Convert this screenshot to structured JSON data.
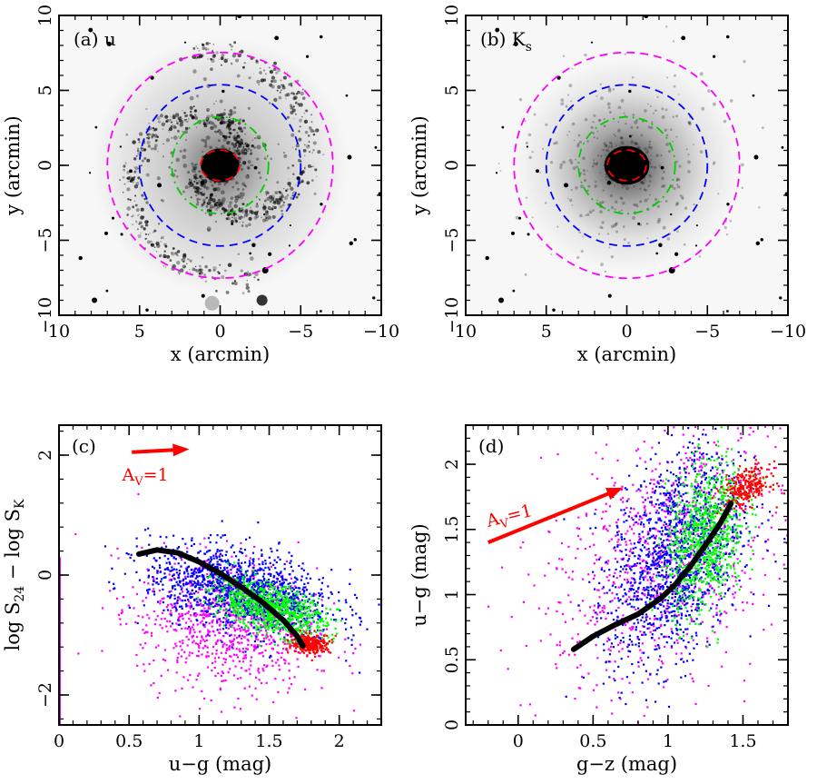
{
  "chart_data": [
    {
      "id": "a",
      "type": "image",
      "panel_label": "(a) u",
      "band": "u",
      "xlabel": "x (arcmin)",
      "ylabel": "y (arcmin)",
      "xlim": [
        10,
        -10
      ],
      "ylim": [
        -10,
        10
      ],
      "xticks": [
        10,
        5,
        0,
        -5,
        -10
      ],
      "yticks": [
        -10,
        -5,
        0,
        5,
        10
      ],
      "xtick_labels": [
        "10",
        "5",
        "0",
        "−5",
        "−10"
      ],
      "ytick_labels": [
        "−10",
        "−5",
        "0",
        "5",
        "10"
      ],
      "apertures": [
        {
          "name": "red",
          "color": "#ff0000",
          "a": 1.2,
          "b": 1.0
        },
        {
          "name": "green",
          "color": "#00cc00",
          "a": 3.0,
          "b": 3.0
        },
        {
          "name": "blue",
          "color": "#0000ff",
          "a": 5.0,
          "b": 5.0
        },
        {
          "name": "magenta",
          "color": "#ff00ff",
          "a": 7.0,
          "b": 7.0
        }
      ]
    },
    {
      "id": "b",
      "type": "image",
      "panel_label": "(b) K",
      "panel_label_sub": "s",
      "band": "Ks",
      "xlabel": "x (arcmin)",
      "ylabel": "y (arcmin)",
      "xlim": [
        10,
        -10
      ],
      "ylim": [
        -10,
        10
      ],
      "xticks": [
        10,
        5,
        0,
        -5,
        -10
      ],
      "yticks": [
        -10,
        -5,
        0,
        5,
        10
      ],
      "xtick_labels": [
        "10",
        "5",
        "0",
        "−5",
        "−10"
      ],
      "ytick_labels": [
        "−10",
        "−5",
        "0",
        "5",
        "10"
      ],
      "apertures": [
        {
          "name": "red",
          "color": "#ff0000",
          "a": 1.2,
          "b": 1.0
        },
        {
          "name": "green",
          "color": "#00cc00",
          "a": 3.0,
          "b": 3.0
        },
        {
          "name": "blue",
          "color": "#0000ff",
          "a": 5.0,
          "b": 5.0
        },
        {
          "name": "magenta",
          "color": "#ff00ff",
          "a": 7.0,
          "b": 7.0
        }
      ]
    },
    {
      "id": "c",
      "type": "scatter",
      "panel_label": "(c)",
      "xlabel": "u−g (mag)",
      "ylabel_parts": [
        "log S",
        "24",
        " − log S",
        "K"
      ],
      "xlim": [
        0,
        2.3
      ],
      "ylim": [
        -2.5,
        2.5
      ],
      "xticks": [
        0,
        0.5,
        1,
        1.5,
        2
      ],
      "yticks": [
        -2,
        0,
        2
      ],
      "xtick_labels": [
        "0",
        "0.5",
        "1",
        "1.5",
        "2"
      ],
      "ytick_labels": [
        "−2",
        "0",
        "2"
      ],
      "arrow": {
        "label": "A",
        "label_sub": "V",
        "label_tail": "=1",
        "from": [
          0.52,
          2.05
        ],
        "to": [
          0.93,
          2.1
        ]
      },
      "series": [
        {
          "name": "magenta",
          "color": "#ff00ff",
          "center": [
            1.2,
            -0.8
          ],
          "spread": [
            0.32,
            0.55
          ],
          "tilt": -0.3,
          "n": 900
        },
        {
          "name": "blue",
          "color": "#0000ff",
          "center": [
            1.3,
            -0.25
          ],
          "spread": [
            0.33,
            0.33
          ],
          "tilt": -0.45,
          "n": 1300
        },
        {
          "name": "green",
          "color": "#00ff00",
          "center": [
            1.5,
            -0.55
          ],
          "spread": [
            0.2,
            0.2
          ],
          "tilt": -0.6,
          "n": 800
        },
        {
          "name": "red",
          "color": "#ff0000",
          "center": [
            1.8,
            -1.15
          ],
          "spread": [
            0.07,
            0.08
          ],
          "tilt": 0,
          "n": 260
        }
      ],
      "model_curve": {
        "color": "#000000",
        "x": [
          0.57,
          0.7,
          0.85,
          1.0,
          1.15,
          1.3,
          1.45,
          1.6,
          1.7,
          1.74
        ],
        "y": [
          0.35,
          0.42,
          0.37,
          0.22,
          0.03,
          -0.2,
          -0.45,
          -0.75,
          -1.02,
          -1.18
        ]
      }
    },
    {
      "id": "d",
      "type": "scatter",
      "panel_label": "(d)",
      "xlabel": "g−z (mag)",
      "ylabel": "u−g (mag)",
      "xlim": [
        -0.35,
        1.8
      ],
      "ylim": [
        0,
        2.3
      ],
      "xticks": [
        0,
        0.5,
        1,
        1.5
      ],
      "yticks": [
        0,
        0.5,
        1,
        1.5,
        2
      ],
      "xtick_labels": [
        "0",
        "0.5",
        "1",
        "1.5"
      ],
      "ytick_labels": [
        "0",
        "0.5",
        "1",
        "1.5",
        "2"
      ],
      "arrow": {
        "label": "A",
        "label_sub": "V",
        "label_tail": "=1",
        "from": [
          -0.2,
          1.4
        ],
        "to": [
          0.7,
          1.82
        ]
      },
      "series": [
        {
          "name": "magenta",
          "color": "#ff00ff",
          "center": [
            0.95,
            1.3
          ],
          "spread": [
            0.38,
            0.5
          ],
          "tilt": 0.5,
          "n": 900
        },
        {
          "name": "blue",
          "color": "#0000ff",
          "center": [
            1.05,
            1.3
          ],
          "spread": [
            0.22,
            0.38
          ],
          "tilt": 0.7,
          "n": 1300
        },
        {
          "name": "green",
          "color": "#00ff00",
          "center": [
            1.25,
            1.45
          ],
          "spread": [
            0.13,
            0.28
          ],
          "tilt": 0.7,
          "n": 800
        },
        {
          "name": "red",
          "color": "#ff0000",
          "center": [
            1.52,
            1.82
          ],
          "spread": [
            0.08,
            0.07
          ],
          "tilt": 0.3,
          "n": 260
        }
      ],
      "model_curve": {
        "color": "#000000",
        "x": [
          0.37,
          0.5,
          0.65,
          0.8,
          0.95,
          1.05,
          1.15,
          1.25,
          1.35,
          1.42
        ],
        "y": [
          0.58,
          0.68,
          0.77,
          0.85,
          0.97,
          1.08,
          1.22,
          1.38,
          1.55,
          1.7
        ]
      }
    }
  ]
}
